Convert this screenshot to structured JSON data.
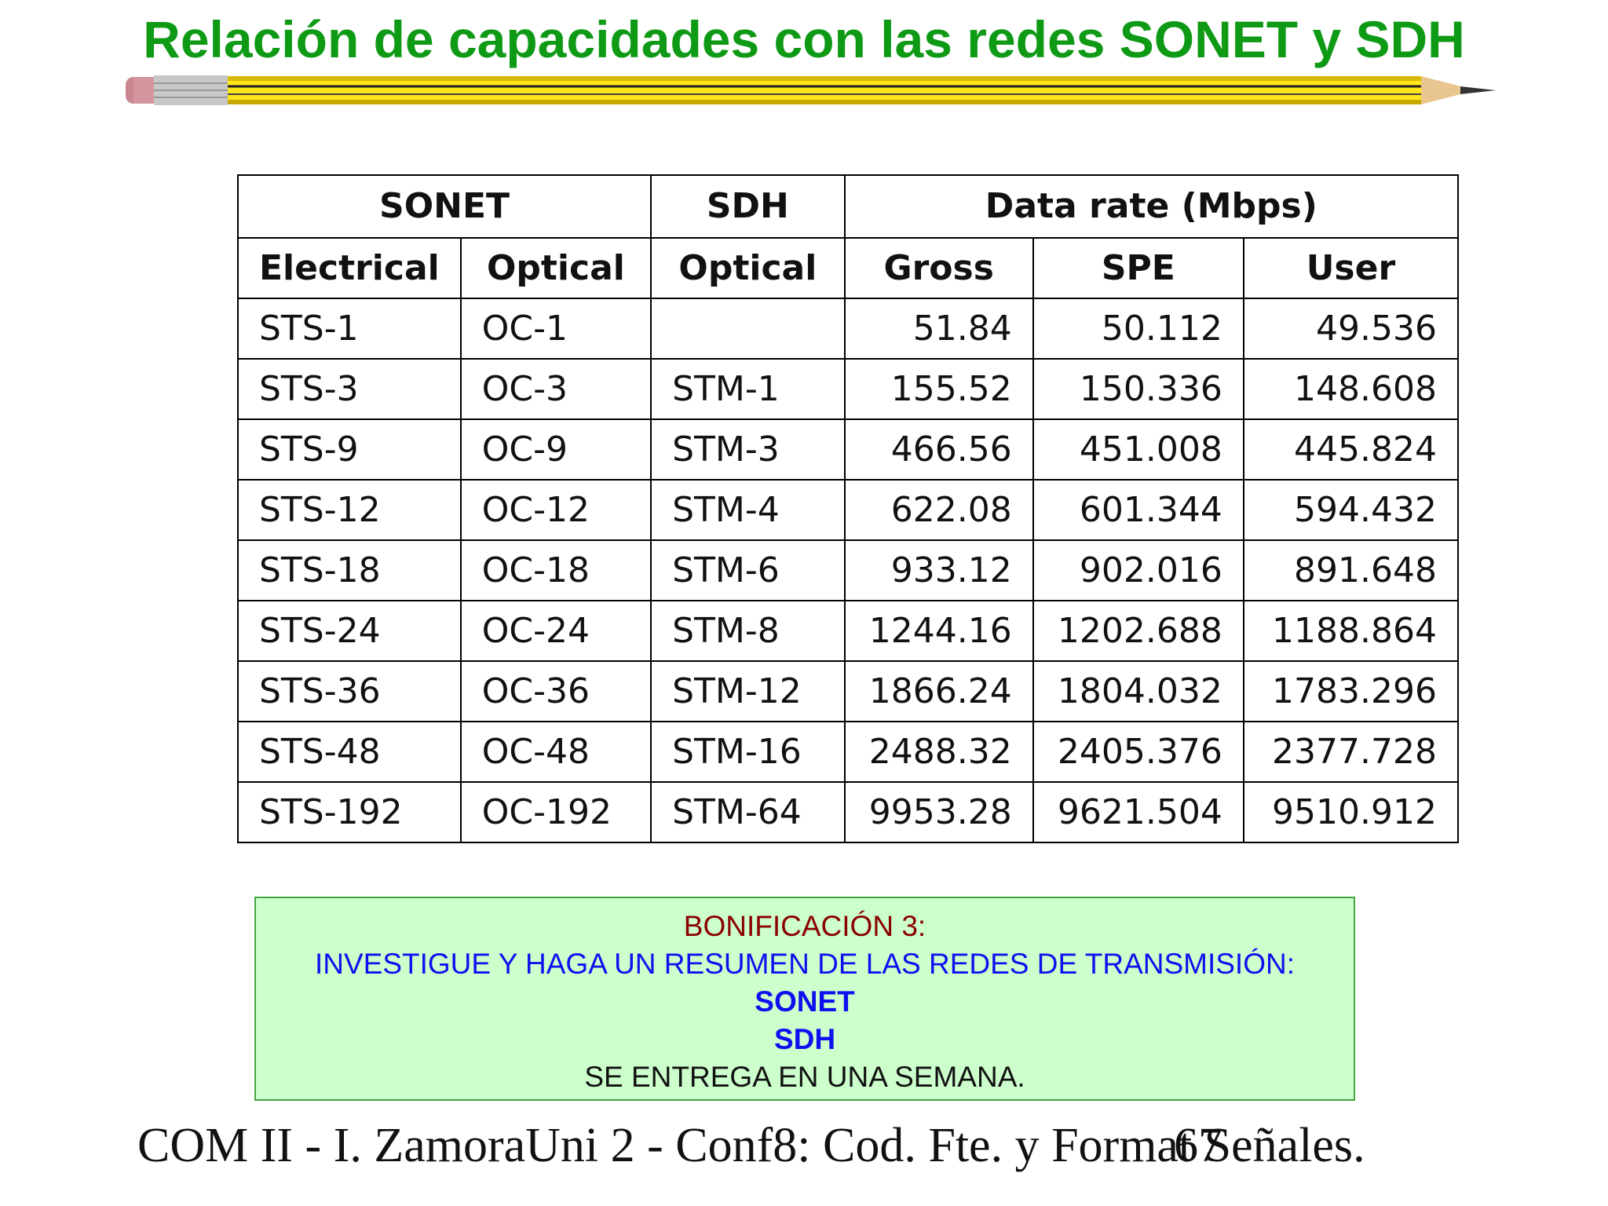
{
  "slide": {
    "title": "Relación de capacidades con las redes SONET y SDH"
  },
  "table": {
    "group_headers": {
      "sonet": "SONET",
      "sdh": "SDH",
      "data_rate": "Data rate (Mbps)"
    },
    "sub_headers": [
      "Electrical",
      "Optical",
      "Optical",
      "Gross",
      "SPE",
      "User"
    ],
    "rows": [
      [
        "STS-1",
        "OC-1",
        "",
        "51.84",
        "50.112",
        "49.536"
      ],
      [
        "STS-3",
        "OC-3",
        "STM-1",
        "155.52",
        "150.336",
        "148.608"
      ],
      [
        "STS-9",
        "OC-9",
        "STM-3",
        "466.56",
        "451.008",
        "445.824"
      ],
      [
        "STS-12",
        "OC-12",
        "STM-4",
        "622.08",
        "601.344",
        "594.432"
      ],
      [
        "STS-18",
        "OC-18",
        "STM-6",
        "933.12",
        "902.016",
        "891.648"
      ],
      [
        "STS-24",
        "OC-24",
        "STM-8",
        "1244.16",
        "1202.688",
        "1188.864"
      ],
      [
        "STS-36",
        "OC-36",
        "STM-12",
        "1866.24",
        "1804.032",
        "1783.296"
      ],
      [
        "STS-48",
        "OC-48",
        "STM-16",
        "2488.32",
        "2405.376",
        "2377.728"
      ],
      [
        "STS-192",
        "OC-192",
        "STM-64",
        "9953.28",
        "9621.504",
        "9510.912"
      ]
    ]
  },
  "bonus": {
    "heading": "BONIFICACIÓN 3:",
    "instruction": "INVESTIGUE Y HAGA UN RESUMEN DE LAS REDES DE TRANSMISIÓN:",
    "topic_1": "SONET",
    "topic_2": "SDH",
    "note": "SE ENTREGA EN UNA SEMANA."
  },
  "footer": {
    "course": "COM II - I. ZamoraUni 2 - Conf8: Cod. Fte. y Format Señales.",
    "page_number": "67"
  },
  "colors": {
    "title": "#0f9a16",
    "bonus_background": "#ccffcc",
    "bonus_heading": "#8b0000",
    "bonus_instruction": "#1010ee"
  },
  "decoration": {
    "divider": "pencil-divider"
  }
}
